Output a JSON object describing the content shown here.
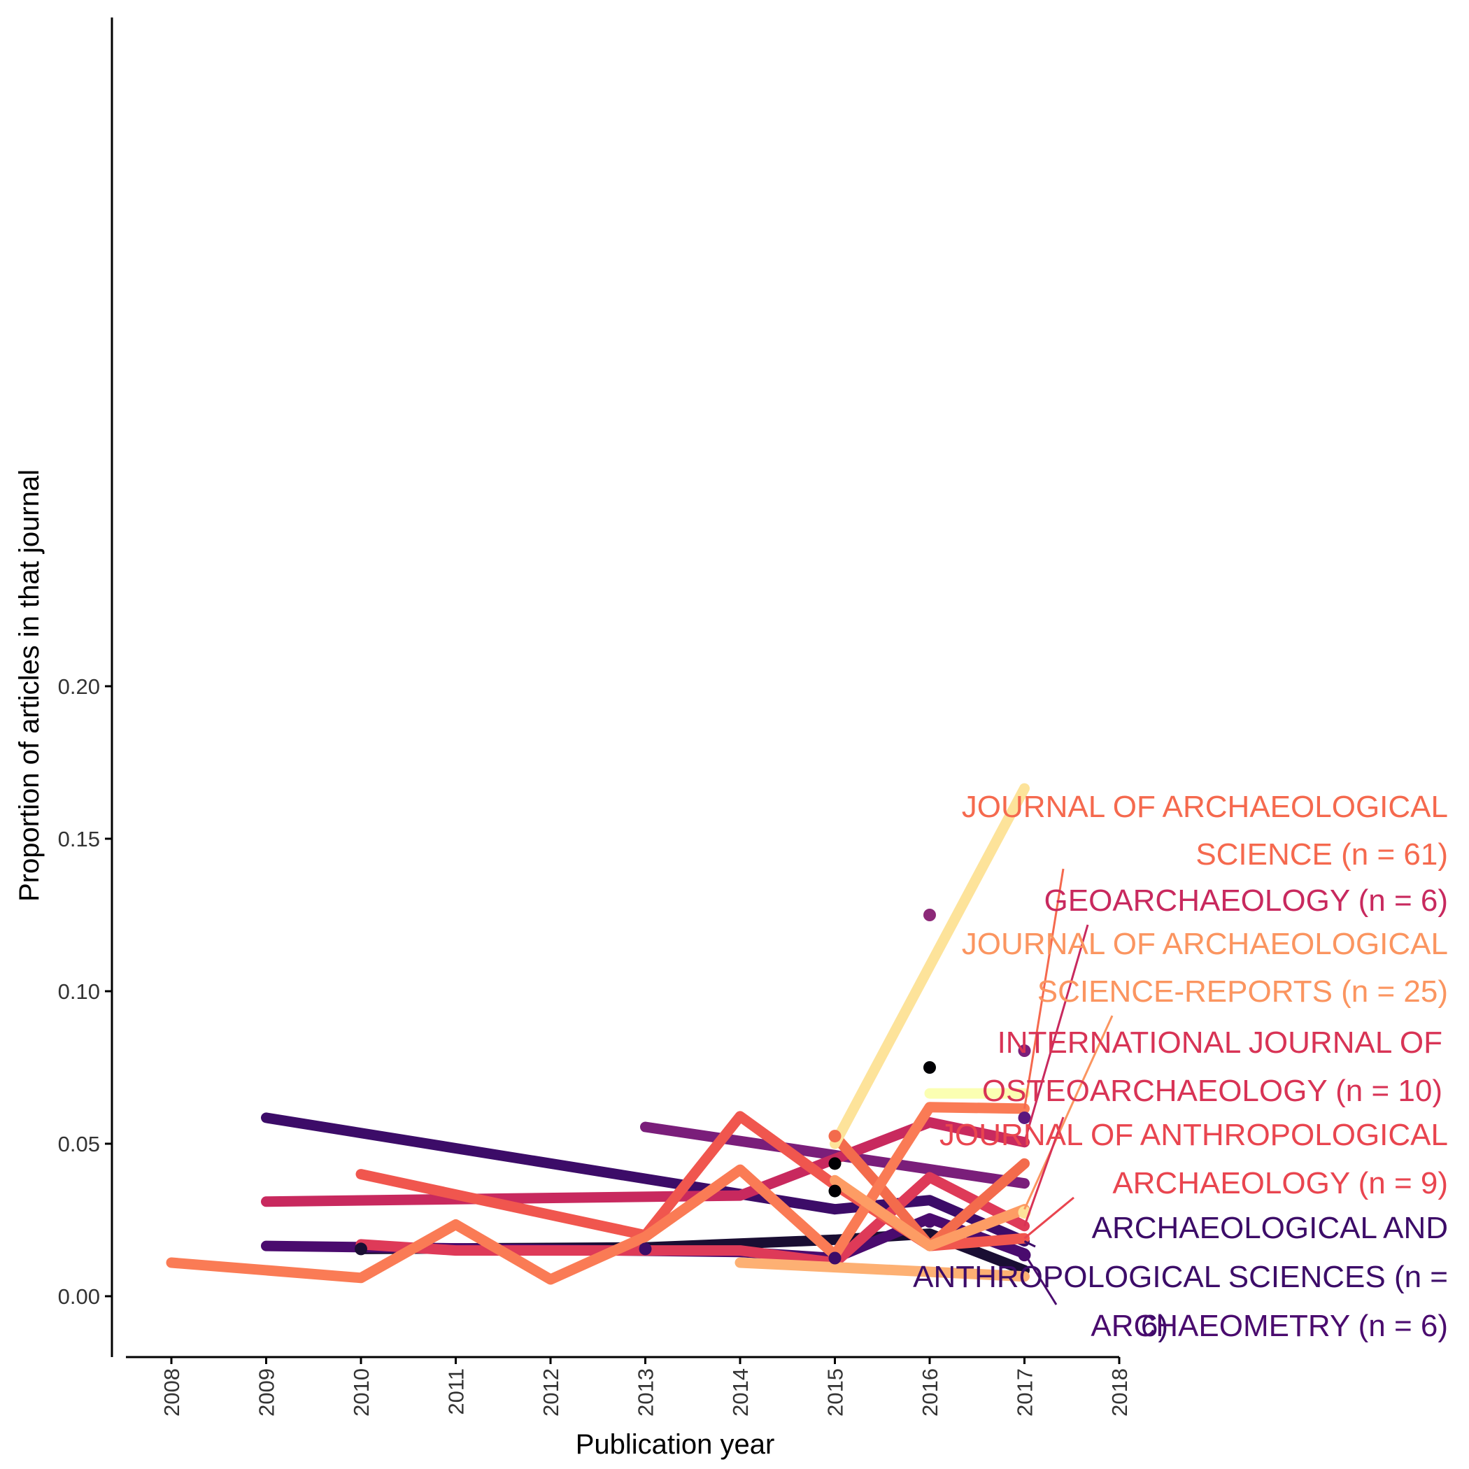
{
  "chart_data": {
    "type": "line",
    "title": "",
    "xlabel": "Publication year",
    "ylabel": "Proportion of articles in that journal",
    "xlim": [
      2008,
      2018
    ],
    "ylim": [
      -0.01,
      0.21
    ],
    "x_ticks": [
      "2008",
      "2009",
      "2010",
      "2011",
      "2012",
      "2013",
      "2014",
      "2015",
      "2016",
      "2017",
      "2018"
    ],
    "y_ticks": [
      "0.00",
      "0.05",
      "0.10",
      "0.15",
      "0.20"
    ],
    "grid": false,
    "legend": "none (direct labels at right)",
    "series": [
      {
        "color": "#7a1e7a",
        "points": [
          [
            2013,
            0.0555
          ],
          [
            2017,
            0.037
          ]
        ]
      },
      {
        "color": "#3c0c68",
        "points": [
          [
            2009,
            0.0585
          ],
          [
            2015,
            0.0285
          ],
          [
            2016,
            0.0315
          ],
          [
            2017,
            0.018
          ]
        ]
      },
      {
        "color": "#c8295e",
        "points": [
          [
            2009,
            0.031
          ],
          [
            2014,
            0.033
          ],
          [
            2016,
            0.057
          ],
          [
            2017,
            0.0505
          ]
        ]
      },
      {
        "color": "#1a0e33",
        "points": [
          [
            2010,
            0.0155
          ],
          [
            2013,
            0.016
          ],
          [
            2015,
            0.0185
          ],
          [
            2016,
            0.0205
          ],
          [
            2017,
            0.0085
          ]
        ]
      },
      {
        "color": "#4a0b6e",
        "points": [
          [
            2009,
            0.0165
          ],
          [
            2014,
            0.0145
          ],
          [
            2015,
            0.0125
          ],
          [
            2016,
            0.0255
          ],
          [
            2017,
            0.014
          ]
        ]
      },
      {
        "color": "#de3a58",
        "points": [
          [
            2010,
            0.017
          ],
          [
            2011,
            0.015
          ],
          [
            2014,
            0.015
          ],
          [
            2015,
            0.011
          ],
          [
            2016,
            0.039
          ],
          [
            2017,
            0.023
          ]
        ]
      },
      {
        "color": "#f0564e",
        "points": [
          [
            2010,
            0.04
          ],
          [
            2013,
            0.02
          ],
          [
            2014,
            0.059
          ],
          [
            2015,
            0.0365
          ],
          [
            2016,
            0.0165
          ],
          [
            2017,
            0.019
          ]
        ]
      },
      {
        "color": "#f36b4c",
        "points": [
          [
            2015,
            0.0525
          ],
          [
            2015.5,
            0.035
          ],
          [
            2016,
            0.0165
          ],
          [
            2017,
            0.0435
          ]
        ]
      },
      {
        "color": "#fa7b55",
        "points": [
          [
            2008,
            0.011
          ],
          [
            2010,
            0.006
          ],
          [
            2011,
            0.0235
          ],
          [
            2012,
            0.0055
          ],
          [
            2013,
            0.0195
          ],
          [
            2014,
            0.0415
          ],
          [
            2015,
            0.0135
          ],
          [
            2016,
            0.062
          ],
          [
            2017,
            0.0615
          ]
        ]
      },
      {
        "color": "#fd9c64",
        "points": [
          [
            2015,
            0.038
          ],
          [
            2016,
            0.0165
          ],
          [
            2017,
            0.0285
          ]
        ]
      },
      {
        "color": "#fdb073",
        "points": [
          [
            2014,
            0.011
          ],
          [
            2017,
            0.0065
          ]
        ]
      },
      {
        "color": "#fde39a",
        "points": [
          [
            2015,
            0.05
          ],
          [
            2017,
            0.1665
          ]
        ]
      },
      {
        "color": "#fbffb2",
        "points": [
          [
            2016,
            0.0665
          ],
          [
            2017,
            0.0665
          ]
        ]
      }
    ],
    "points": [
      {
        "x": 2016,
        "y": 0.125,
        "color": "#8c2978"
      },
      {
        "x": 2016,
        "y": 0.075,
        "color": "#000004"
      },
      {
        "x": 2017,
        "y": 0.0805,
        "color": "#7a1e7a"
      },
      {
        "x": 2017,
        "y": 0.0585,
        "color": "#5c177e"
      },
      {
        "x": 2015,
        "y": 0.0435,
        "color": "#000004"
      },
      {
        "x": 2015,
        "y": 0.0345,
        "color": "#000004"
      },
      {
        "x": 2015,
        "y": 0.0525,
        "color": "#f36b4c"
      },
      {
        "x": 2010,
        "y": 0.0155,
        "color": "#1a0e33"
      },
      {
        "x": 2013,
        "y": 0.0155,
        "color": "#3c0c68"
      },
      {
        "x": 2015,
        "y": 0.0125,
        "color": "#3c0c68"
      },
      {
        "x": 2016,
        "y": 0.0245,
        "color": "#4a0b6e"
      },
      {
        "x": 2017,
        "y": 0.0135,
        "color": "#4a0b6e"
      },
      {
        "x": 2017,
        "y": 0.0275,
        "color": "#fde39a"
      }
    ],
    "labels": [
      {
        "lines": [
          "JOURNAL OF ARCHAEOLOGICAL",
          "SCIENCE (n = 61)"
        ],
        "color": "#f5694e",
        "anchor": [
          2017,
          0.0615
        ]
      },
      {
        "lines": [
          "GEOARCHAEOLOGY (n = 6)"
        ],
        "color": "#c8295e",
        "anchor": [
          2017,
          0.0505
        ]
      },
      {
        "lines": [
          "JOURNAL OF ARCHAEOLOGICAL",
          "SCIENCE-REPORTS (n = 25)"
        ],
        "color": "#fb9560",
        "anchor": [
          2017,
          0.0285
        ]
      },
      {
        "lines": [
          "INTERNATIONAL JOURNAL OF",
          "OSTEOARCHAEOLOGY (n = 10)"
        ],
        "color": "#d83355",
        "anchor": [
          2017,
          0.023
        ]
      },
      {
        "lines": [
          "JOURNAL OF ANTHROPOLOGICAL",
          "ARCHAEOLOGY (n = 9)"
        ],
        "color": "#e9454f",
        "anchor": [
          2017,
          0.019
        ]
      },
      {
        "lines": [
          "ARCHAEOLOGICAL AND",
          "ANTHROPOLOGICAL SCIENCES (n =",
          "6)"
        ],
        "color": "#3c0c68",
        "anchor": [
          2017,
          0.018
        ]
      },
      {
        "lines": [
          "ARCHAEOMETRY (n = 6)"
        ],
        "color": "#4a0b6e",
        "anchor": [
          2017,
          0.014
        ]
      }
    ]
  }
}
